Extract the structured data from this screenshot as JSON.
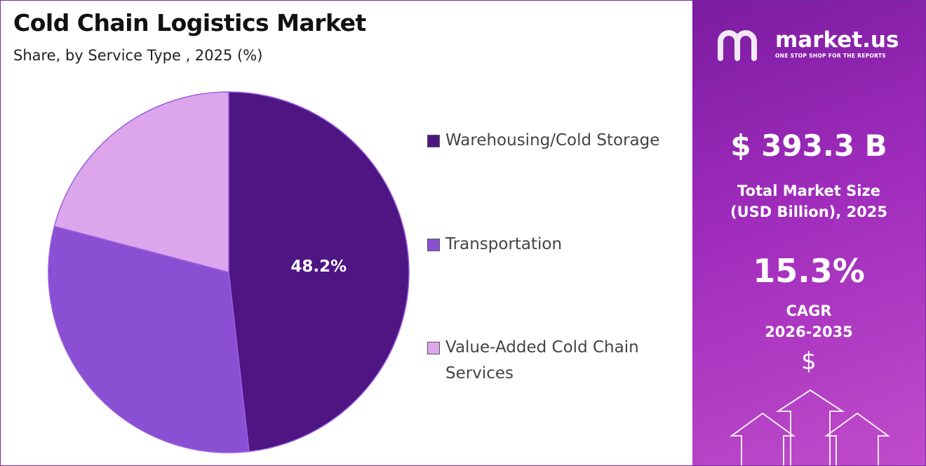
{
  "chart_data": {
    "type": "pie",
    "title": "Cold Chain Logistics Market",
    "subtitle": "Share, by Service Type , 2025 (%)",
    "categories": [
      "Warehousing/Cold Storage",
      "Transportation",
      "Value-Added Cold Chain Services"
    ],
    "values": [
      48.2,
      30.9,
      20.9
    ],
    "value_labels": [
      "48.2%",
      null,
      null
    ],
    "colors": [
      "#4e1583",
      "#8a4fd2",
      "#dda6ec"
    ]
  },
  "panel": {
    "brand": "market.us",
    "tagline": "ONE STOP SHOP FOR THE REPORTS",
    "market_size": "$ 393.3 B",
    "market_size_label": "Total Market Size (USD Billion), 2025",
    "cagr": "15.3%",
    "cagr_label": "CAGR",
    "cagr_period": "2026-2035",
    "currency_icon": "$"
  }
}
